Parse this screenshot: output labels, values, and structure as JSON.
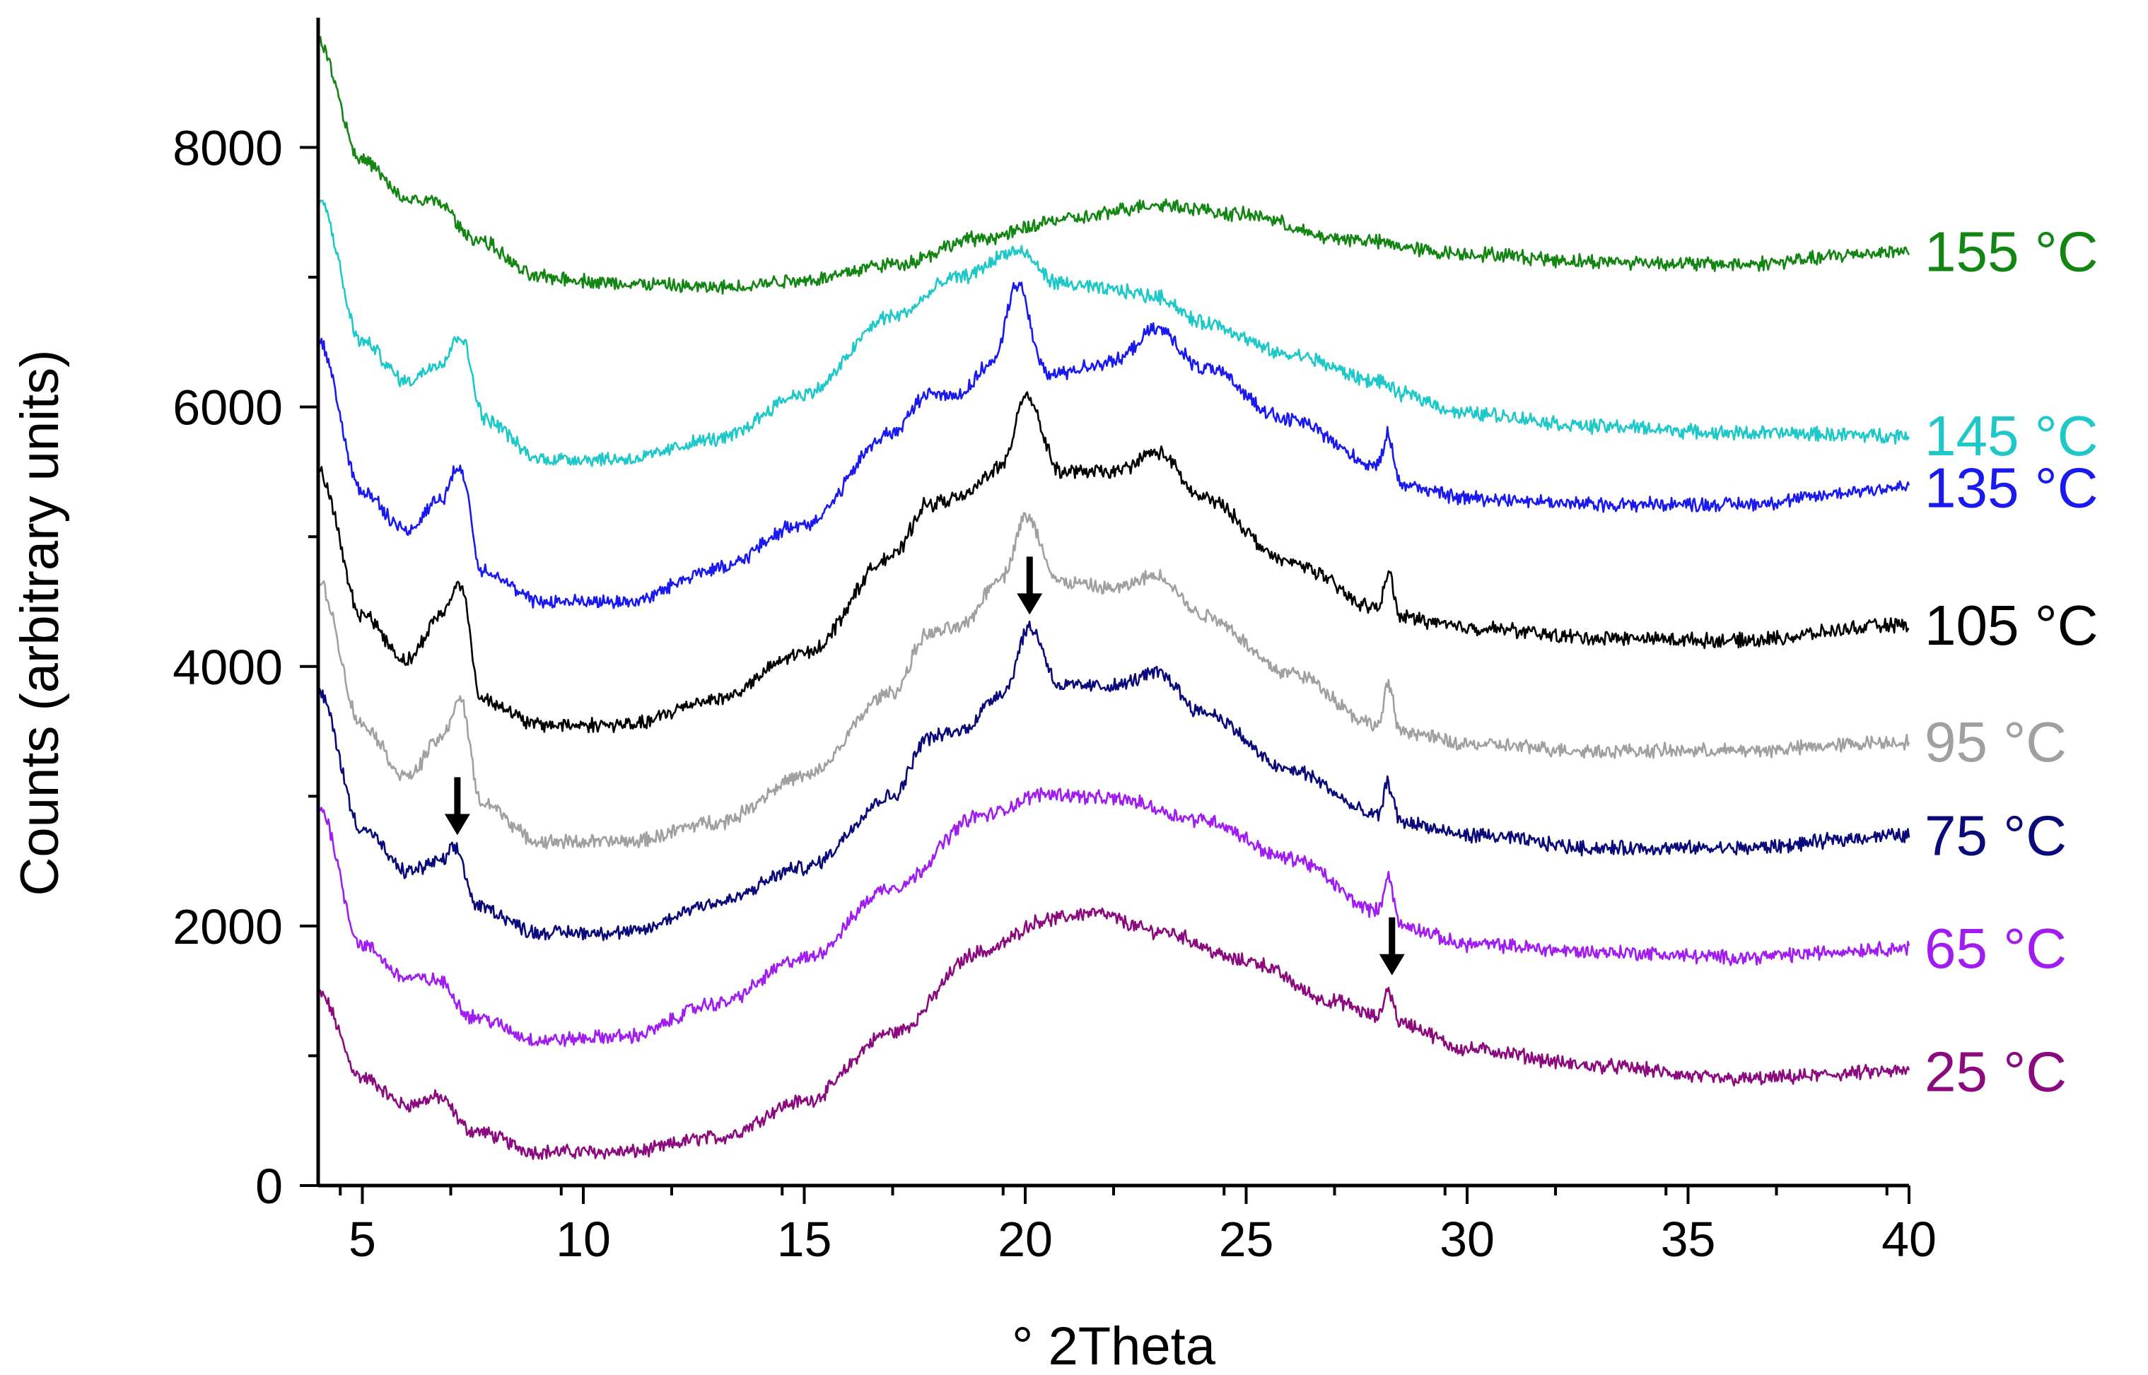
{
  "chart_data": {
    "type": "line",
    "title": "",
    "xlabel": "° 2Theta",
    "ylabel": "Counts (arbitrary units)",
    "xlim": [
      4,
      40
    ],
    "ylim": [
      0,
      9000
    ],
    "x_ticks": [
      5,
      10,
      15,
      20,
      25,
      30,
      35,
      40
    ],
    "x_tick_labels": [
      "5",
      "10",
      "15",
      "20",
      "25",
      "30",
      "35",
      "40"
    ],
    "y_ticks": [
      0,
      2000,
      4000,
      6000,
      8000
    ],
    "y_tick_labels": [
      "0",
      "2000",
      "4000",
      "6000",
      "8000"
    ],
    "y_minor_step": 1000,
    "grid": false,
    "legend": "inline labels at right end of each curve",
    "series": [
      {
        "name": "25 °C",
        "color": "#8B0A7E",
        "x": [
          4,
          5,
          6,
          6.7,
          7.5,
          9,
          11,
          13,
          15,
          17,
          19,
          20.5,
          21.5,
          23,
          25,
          27,
          28,
          28.2,
          28.5,
          30,
          33,
          36,
          40
        ],
        "y": [
          1480,
          830,
          620,
          680,
          420,
          260,
          260,
          370,
          650,
          1180,
          1800,
          2050,
          2100,
          1960,
          1730,
          1420,
          1300,
          1510,
          1250,
          1050,
          920,
          820,
          880
        ]
      },
      {
        "name": "65 °C",
        "color": "#A01CF0",
        "x": [
          4,
          5,
          6,
          6.7,
          7.5,
          9,
          11,
          13,
          15,
          17,
          19,
          20.5,
          22,
          24,
          26,
          28,
          28.2,
          28.5,
          30,
          33,
          36,
          40
        ],
        "y": [
          2920,
          1850,
          1600,
          1580,
          1300,
          1120,
          1150,
          1400,
          1750,
          2300,
          2850,
          3020,
          2980,
          2820,
          2520,
          2120,
          2390,
          2000,
          1860,
          1800,
          1760,
          1830
        ]
      },
      {
        "name": "75 °C",
        "color": "#0A0A7A",
        "x": [
          4,
          5,
          6,
          6.8,
          7.1,
          7.6,
          9,
          11,
          13,
          15,
          17,
          17.8,
          18.5,
          19.5,
          20.1,
          20.8,
          22,
          23,
          24,
          26,
          28,
          28.2,
          28.5,
          30,
          33,
          36,
          40
        ],
        "y": [
          3800,
          2750,
          2420,
          2500,
          2600,
          2150,
          1950,
          1950,
          2180,
          2450,
          3000,
          3450,
          3500,
          3800,
          4300,
          3850,
          3850,
          3950,
          3650,
          3200,
          2850,
          3100,
          2800,
          2700,
          2600,
          2600,
          2700
        ]
      },
      {
        "name": "95 °C",
        "color": "#A0A0A0",
        "x": [
          4,
          5,
          6,
          6.8,
          7.2,
          7.7,
          9,
          11,
          13,
          15,
          17,
          17.8,
          18.5,
          19.5,
          20.0,
          20.8,
          22,
          23,
          24,
          26,
          28,
          28.2,
          28.5,
          30,
          33,
          36,
          40
        ],
        "y": [
          4650,
          3550,
          3150,
          3450,
          3750,
          2950,
          2650,
          2650,
          2800,
          3150,
          3800,
          4250,
          4300,
          4700,
          5150,
          4650,
          4600,
          4700,
          4400,
          3950,
          3550,
          3850,
          3500,
          3400,
          3350,
          3350,
          3420
        ]
      },
      {
        "name": "105 °C",
        "color": "#000000",
        "x": [
          4,
          5,
          6,
          6.8,
          7.2,
          7.7,
          9,
          11,
          13,
          15,
          17,
          17.8,
          18.5,
          19.5,
          20.0,
          20.8,
          22,
          23,
          24,
          26,
          28,
          28.2,
          28.5,
          30,
          33,
          36,
          40
        ],
        "y": [
          5500,
          4400,
          4050,
          4400,
          4650,
          3750,
          3550,
          3550,
          3750,
          4100,
          4850,
          5250,
          5300,
          5550,
          6100,
          5500,
          5500,
          5650,
          5300,
          4800,
          4450,
          4720,
          4380,
          4300,
          4220,
          4200,
          4320
        ]
      },
      {
        "name": "135 °C",
        "color": "#1A1AEE",
        "x": [
          4,
          5,
          6,
          6.8,
          7.2,
          7.7,
          9,
          11,
          13,
          15,
          17,
          17.8,
          18.5,
          19.3,
          19.8,
          20.5,
          22,
          23,
          24,
          26,
          28,
          28.2,
          28.5,
          30,
          33,
          36,
          40
        ],
        "y": [
          6500,
          5350,
          5050,
          5300,
          5550,
          4750,
          4500,
          4500,
          4750,
          5100,
          5800,
          6100,
          6100,
          6350,
          6950,
          6250,
          6350,
          6600,
          6300,
          5900,
          5550,
          5800,
          5400,
          5300,
          5250,
          5250,
          5380
        ]
      },
      {
        "name": "145 °C",
        "color": "#1EC8C8",
        "x": [
          4,
          5,
          6,
          6.8,
          7.2,
          7.8,
          9,
          11,
          13,
          15,
          17,
          18.5,
          19.8,
          20.8,
          22,
          23,
          24,
          26,
          28,
          28.5,
          30,
          33,
          36,
          40
        ],
        "y": [
          7600,
          6500,
          6200,
          6350,
          6550,
          5900,
          5600,
          5600,
          5750,
          6100,
          6700,
          7000,
          7200,
          6950,
          6900,
          6850,
          6650,
          6400,
          6200,
          6100,
          5950,
          5850,
          5800,
          5780
        ]
      },
      {
        "name": "155 °C",
        "color": "#128512",
        "x": [
          4,
          5,
          6,
          6.7,
          7.5,
          9,
          11,
          13,
          15,
          17,
          19,
          21,
          23,
          25,
          27,
          30,
          33,
          36,
          40
        ],
        "y": [
          8800,
          7900,
          7600,
          7580,
          7300,
          7000,
          6950,
          6920,
          6980,
          7100,
          7300,
          7450,
          7560,
          7480,
          7300,
          7180,
          7120,
          7100,
          7200
        ]
      }
    ],
    "annotations": [
      {
        "type": "arrow-down",
        "x": 7.15,
        "y": 2700
      },
      {
        "type": "arrow-down",
        "x": 20.1,
        "y": 4400
      },
      {
        "type": "arrow-down",
        "x": 28.3,
        "y": 1620
      }
    ]
  }
}
